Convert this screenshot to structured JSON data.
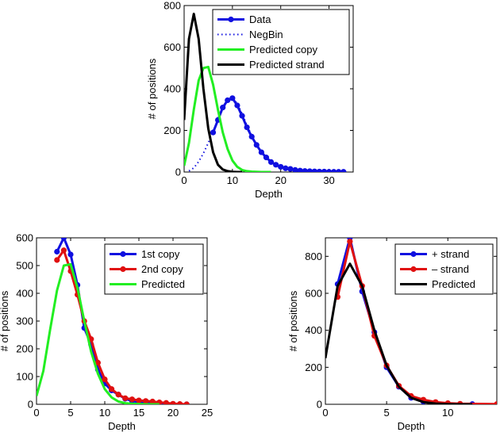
{
  "chart_data": [
    {
      "type": "line",
      "xlabel": "Depth",
      "ylabel": "# of positions",
      "xlim": [
        0,
        35
      ],
      "ylim": [
        0,
        800
      ],
      "xticks": [
        0,
        10,
        20,
        30
      ],
      "yticks": [
        0,
        200,
        400,
        600,
        800
      ],
      "legend": "top-right",
      "grid": false,
      "series": [
        {
          "name": "Data",
          "style": "solid-markers",
          "color": "#1010e0",
          "x": [
            6,
            7,
            8,
            9,
            10,
            11,
            12,
            13,
            14,
            15,
            16,
            17,
            18,
            19,
            20,
            21,
            22,
            23,
            24,
            25,
            26,
            27,
            28,
            29,
            30,
            31,
            32,
            33
          ],
          "y": [
            190,
            250,
            310,
            345,
            355,
            320,
            270,
            215,
            170,
            130,
            95,
            70,
            48,
            35,
            25,
            18,
            15,
            10,
            7,
            5,
            4,
            3,
            2,
            2,
            1,
            1,
            1,
            1
          ]
        },
        {
          "name": "NegBin",
          "style": "dotted",
          "color": "#1010e0",
          "x": [
            1,
            2,
            3,
            4,
            5,
            6,
            7,
            8,
            9,
            10,
            11,
            12,
            13,
            14,
            15,
            16,
            17,
            18,
            19,
            20,
            22,
            24,
            26,
            28,
            30,
            32,
            34
          ],
          "y": [
            5,
            20,
            50,
            90,
            140,
            195,
            250,
            305,
            340,
            355,
            330,
            280,
            225,
            175,
            130,
            95,
            68,
            48,
            33,
            23,
            11,
            5,
            2,
            1,
            0,
            0,
            0
          ]
        },
        {
          "name": "Predicted copy",
          "style": "solid",
          "color": "#22ee22",
          "x": [
            0,
            1,
            2,
            3,
            4,
            5,
            6,
            7,
            8,
            9,
            10,
            11,
            12,
            13,
            14,
            15,
            16,
            17,
            18
          ],
          "y": [
            30,
            140,
            300,
            440,
            500,
            505,
            420,
            300,
            190,
            110,
            55,
            25,
            10,
            4,
            2,
            1,
            0,
            0,
            0
          ]
        },
        {
          "name": "Predicted strand",
          "style": "solid",
          "color": "#000000",
          "x": [
            0,
            1,
            2,
            3,
            4,
            5,
            6,
            7,
            8,
            9,
            10,
            11,
            12
          ],
          "y": [
            250,
            640,
            760,
            640,
            400,
            210,
            95,
            35,
            12,
            4,
            1,
            0,
            0
          ]
        }
      ]
    },
    {
      "type": "line",
      "xlabel": "Depth",
      "ylabel": "# of positions",
      "xlim": [
        0,
        25
      ],
      "ylim": [
        0,
        600
      ],
      "xticks": [
        0,
        5,
        10,
        15,
        20,
        25
      ],
      "yticks": [
        0,
        100,
        200,
        300,
        400,
        500,
        600
      ],
      "legend": "top-right",
      "grid": false,
      "series": [
        {
          "name": "1st copy",
          "style": "solid-markers",
          "color": "#1010e0",
          "x": [
            3,
            4,
            5,
            6,
            7,
            8,
            9,
            10,
            11,
            12,
            13,
            14,
            15,
            16,
            17,
            18,
            19,
            20,
            21,
            22
          ],
          "y": [
            550,
            600,
            540,
            430,
            275,
            215,
            125,
            75,
            50,
            35,
            20,
            12,
            8,
            5,
            3,
            2,
            1,
            1,
            0,
            0
          ]
        },
        {
          "name": "2nd copy",
          "style": "solid-markers",
          "color": "#e01010",
          "x": [
            3,
            4,
            5,
            6,
            7,
            8,
            9,
            10,
            11,
            12,
            13,
            14,
            15,
            16,
            17,
            18,
            19,
            20,
            21,
            22
          ],
          "y": [
            520,
            555,
            480,
            395,
            300,
            235,
            150,
            90,
            55,
            35,
            22,
            18,
            14,
            12,
            10,
            7,
            5,
            2,
            1,
            0
          ]
        },
        {
          "name": "Predicted",
          "style": "solid",
          "color": "#22ee22",
          "x": [
            0,
            1,
            2,
            3,
            4,
            5,
            6,
            7,
            8,
            9,
            10,
            11,
            12,
            13,
            14,
            15,
            16,
            17,
            18
          ],
          "y": [
            30,
            120,
            270,
            410,
            500,
            505,
            420,
            300,
            190,
            110,
            55,
            25,
            10,
            4,
            2,
            1,
            0,
            0,
            0
          ]
        }
      ]
    },
    {
      "type": "line",
      "xlabel": "Depth",
      "ylabel": "# of positions",
      "xlim": [
        0,
        14
      ],
      "ylim": [
        0,
        900
      ],
      "xticks": [
        0,
        5,
        10
      ],
      "yticks": [
        0,
        200,
        400,
        600,
        800
      ],
      "legend": "top-right",
      "grid": false,
      "series": [
        {
          "name": "+ strand",
          "style": "solid-markers",
          "color": "#1010e0",
          "x": [
            1,
            2,
            3,
            4,
            5,
            6,
            7,
            8,
            9,
            10,
            11,
            12
          ],
          "y": [
            650,
            900,
            610,
            390,
            200,
            95,
            35,
            15,
            6,
            3,
            1,
            1
          ]
        },
        {
          "name": "– strand",
          "style": "solid-markers",
          "color": "#e01010",
          "x": [
            1,
            2,
            3,
            4,
            5,
            6,
            7,
            8,
            9,
            10,
            11,
            14
          ],
          "y": [
            580,
            880,
            640,
            370,
            210,
            100,
            45,
            25,
            12,
            6,
            3,
            1
          ]
        },
        {
          "name": "Predicted",
          "style": "solid",
          "color": "#000000",
          "x": [
            0,
            1,
            2,
            3,
            4,
            5,
            6,
            7,
            8,
            9,
            10,
            11,
            12
          ],
          "y": [
            250,
            640,
            760,
            640,
            400,
            210,
            95,
            35,
            12,
            4,
            1,
            0,
            0
          ]
        }
      ]
    }
  ]
}
